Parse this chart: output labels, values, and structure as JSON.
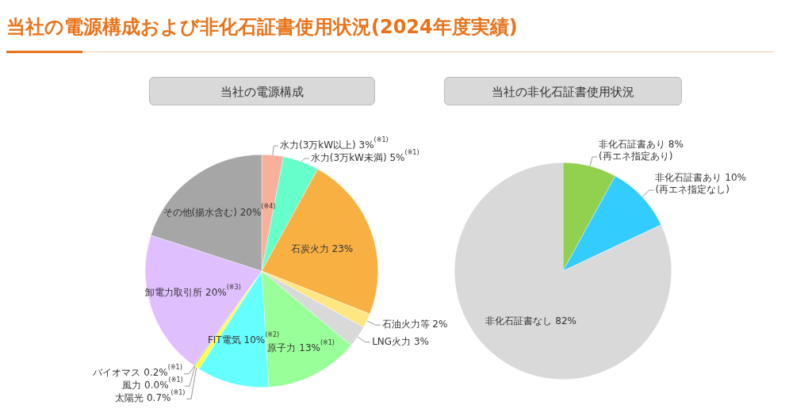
{
  "chart_data": [
    {
      "type": "pie",
      "title": "当社の電源構成および非化石証書使用状況(2024年度実績)",
      "subtitle": "当社の電源構成",
      "categories": [
        "水力(3万kW以上)",
        "水力(3万kW未満)",
        "石炭火力",
        "石油火力等",
        "LNG火力",
        "原子力",
        "FIT電気",
        "太陽光",
        "風力",
        "バイオマス",
        "卸電力取引所",
        "その他(揚水含む)"
      ],
      "values": [
        3,
        5,
        23,
        2,
        3,
        13,
        10,
        0.7,
        0.0,
        0.2,
        20,
        20
      ],
      "value_labels": [
        "3%$^{(※1)}$",
        "5%$^{(※1)}$",
        "23%",
        "2%",
        "3%",
        "13%$^{(※1)}$",
        "10%$^{(※2)}$",
        "0.7%$^{(※1)}$",
        "0.0%$^{(※1)}$",
        "0.2%$^{(※1)}$",
        "20%$^{(※3)}$",
        "20%$^{(※4)}$"
      ],
      "colors": [
        "#f8b09c",
        "#66ffcc",
        "#f8b043",
        "#ffe680",
        "#d9d9d9",
        "#99ff99",
        "#66ffff",
        "#ffff44",
        "#e0e0e0",
        "#bfbfbf",
        "#e0bfff",
        "#a6a6a6"
      ]
    },
    {
      "type": "pie",
      "title": "当社の非化石証書使用状況",
      "categories": [
        "非化石証書あり",
        "非化石証書あり",
        "非化石証書なし"
      ],
      "values": [
        8,
        10,
        82
      ],
      "value_labels": [
        "8%\n(再エネ指定あり)",
        "10%\n(再エネ指定なし)",
        "82%"
      ],
      "colors": [
        "#92d050",
        "#33ccff",
        "#d9d9d9"
      ]
    }
  ]
}
